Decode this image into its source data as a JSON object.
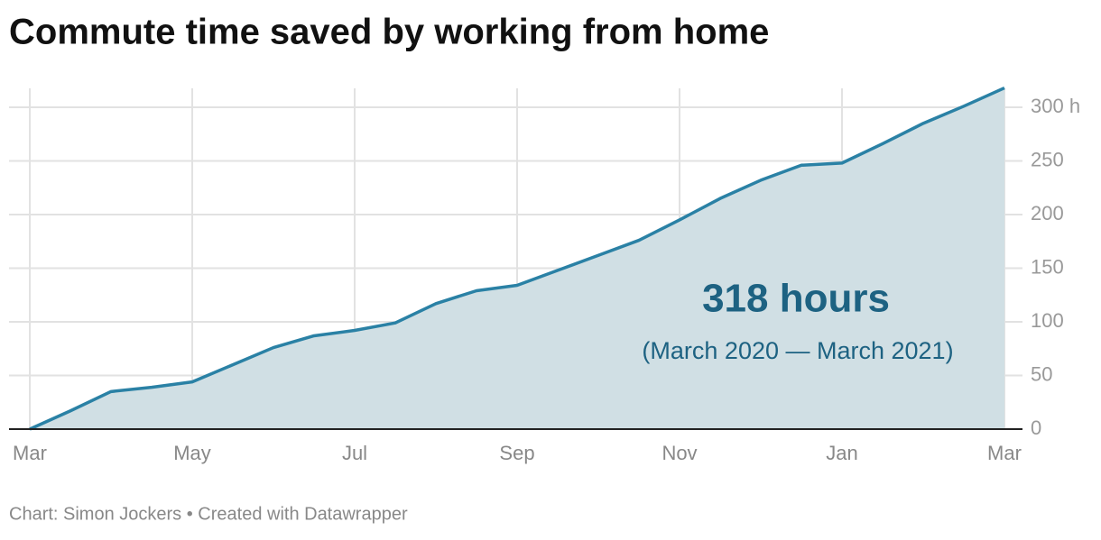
{
  "chart_data": {
    "type": "area",
    "title": "Commute time saved by working from home",
    "footer": "Chart: Simon Jockers • Created with Datawrapper",
    "annotations": [
      "318 hours",
      "(March 2020 — March 2021)"
    ],
    "categories": [
      "Mar",
      null,
      null,
      null,
      "May",
      null,
      null,
      null,
      "Jul",
      null,
      null,
      null,
      "Sep",
      null,
      null,
      null,
      "Nov",
      null,
      null,
      null,
      "Jan",
      null,
      null,
      null,
      "Mar"
    ],
    "series": [
      {
        "name": "Commute time saved",
        "color": "#2a81a5",
        "fill": "#d0dfe4",
        "values": [
          0,
          17,
          35,
          39,
          44,
          60,
          76,
          87,
          92,
          99,
          117,
          129,
          134,
          148,
          162,
          176,
          195,
          215,
          232,
          246,
          248,
          266,
          285,
          301,
          318
        ]
      }
    ],
    "ylim": [
      0,
      320
    ],
    "yticks": [
      0,
      50,
      100,
      150,
      200,
      250,
      {
        "value": 300,
        "label": "300 h"
      }
    ],
    "grid": true
  }
}
